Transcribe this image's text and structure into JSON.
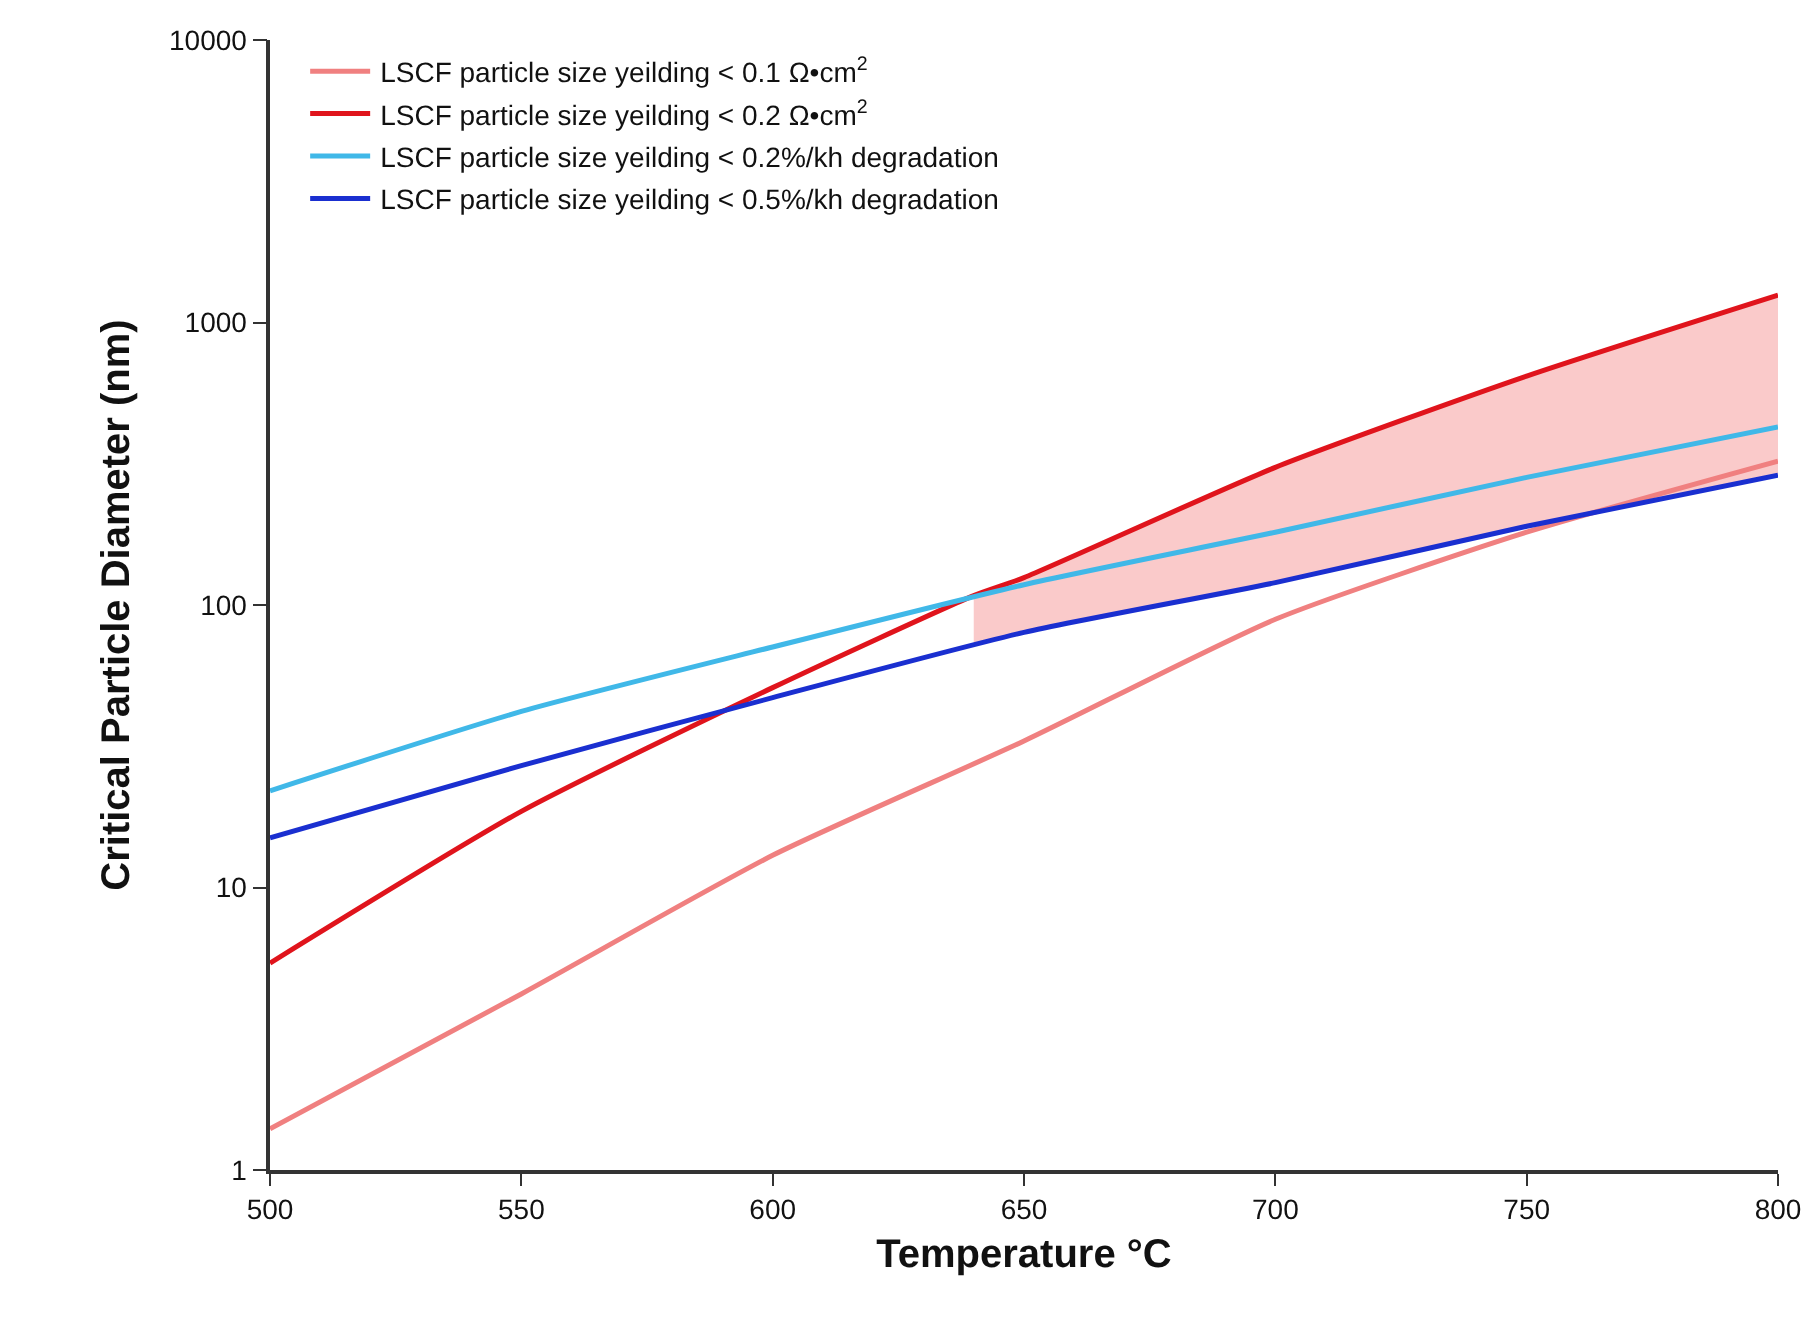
{
  "chart_data": {
    "type": "line",
    "xlabel": "Temperature °C",
    "ylabel": "Critical Particle Diameter (nm)",
    "x": [
      500,
      550,
      600,
      650,
      700,
      750,
      800
    ],
    "series": [
      {
        "name": "LSCF particle size yeilding < 0.1 Ω•cm$^{2}$",
        "color": "#f08080",
        "values": [
          1.4,
          4.2,
          13,
          33,
          89,
          181,
          323
        ]
      },
      {
        "name": "LSCF particle size yeilding < 0.2 Ω•cm$^{2}$",
        "color": "#e0141c",
        "x": [
          500,
          550,
          600,
          640,
          650,
          700,
          750,
          800
        ],
        "values": [
          5.4,
          18.6,
          51,
          108,
          125,
          307,
          646,
          1250
        ],
        "lower": [
          null,
          null,
          null,
          73,
          80,
          120,
          190,
          288
        ],
        "upper": [
          null,
          null,
          null,
          108,
          125,
          307,
          646,
          1250
        ]
      },
      {
        "name": "LSCF particle size yeilding < 0.2%/kh degradation",
        "color": "#40b8e8",
        "values": [
          22,
          42,
          71,
          118,
          181,
          283,
          427
        ]
      },
      {
        "name": "LSCF particle size yeilding < 0.5%/kh degradation",
        "color": "#1a2fd0",
        "values": [
          15,
          27,
          47,
          80,
          120,
          190,
          288
        ]
      }
    ],
    "xlim": [
      500,
      800
    ],
    "xticks": [
      500,
      550,
      600,
      650,
      700,
      750,
      800
    ],
    "ylim": [
      1,
      10000
    ],
    "yticks": [
      1,
      10,
      100,
      1000,
      10000
    ],
    "log": true,
    "grid": false,
    "legend": "top left",
    "line_style": "solid",
    "marker": "none"
  }
}
